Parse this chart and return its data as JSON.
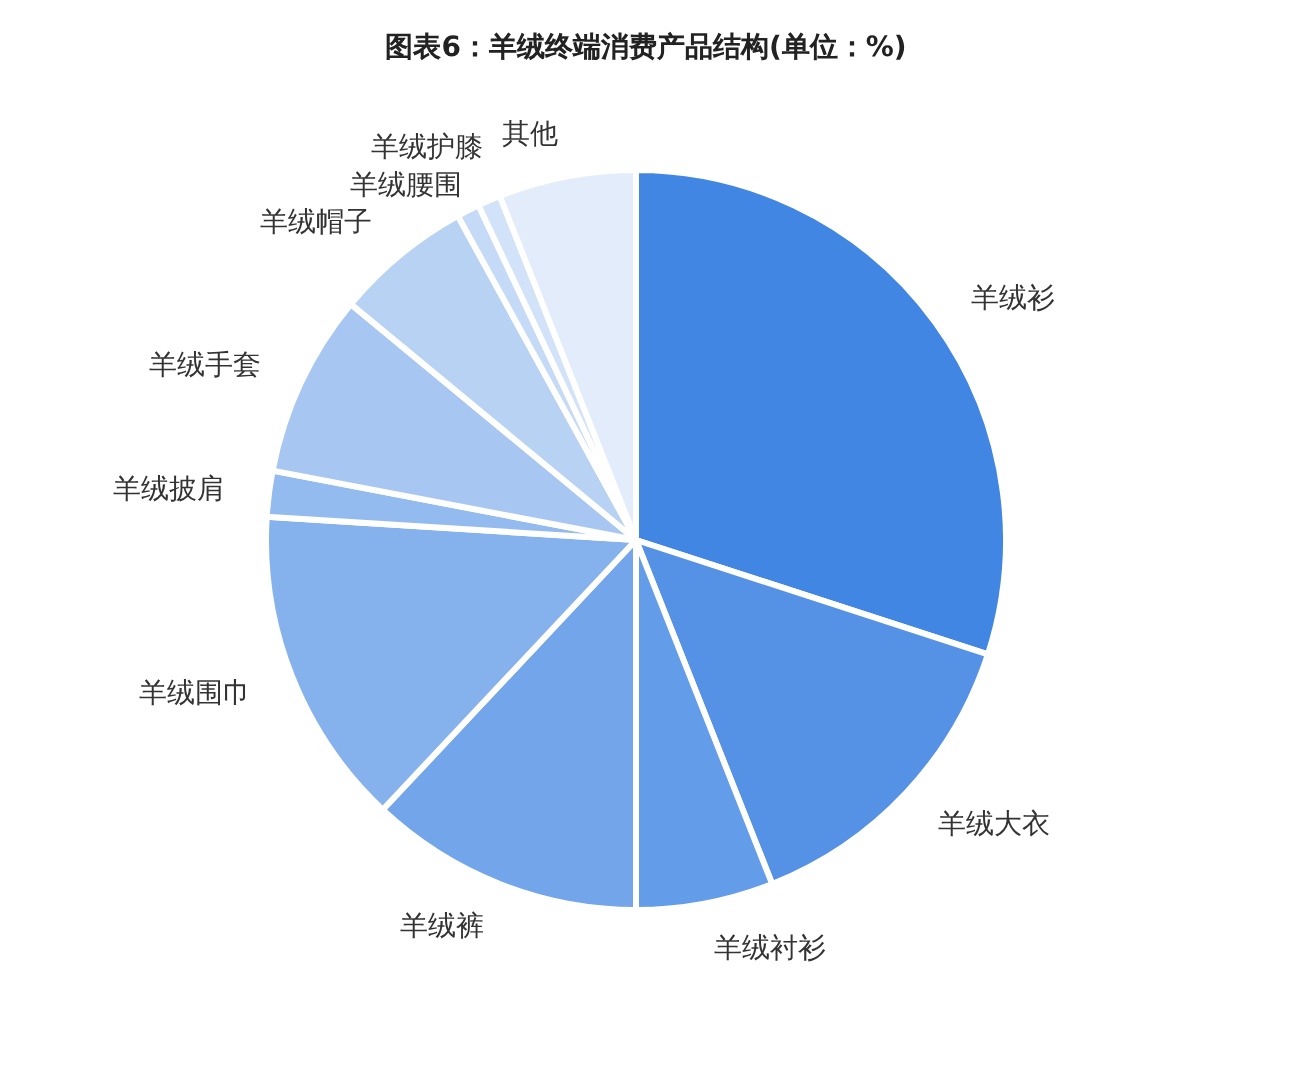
{
  "chart_data": {
    "type": "pie",
    "title": "图表6：羊绒终端消费产品结构(单位：%)",
    "categories": [
      "羊绒衫",
      "羊绒大衣",
      "羊绒衬衫",
      "羊绒裤",
      "羊绒围巾",
      "羊绒披肩",
      "羊绒手套",
      "羊绒帽子",
      "羊绒腰围",
      "羊绒护膝",
      "其他"
    ],
    "values": [
      30,
      14,
      6,
      12,
      14,
      2,
      8,
      6,
      1,
      1,
      6
    ],
    "colors": [
      "#4286e3",
      "#5592e5",
      "#639ce8",
      "#72a5ea",
      "#85b2ed",
      "#94bbef",
      "#a7c7f2",
      "#b8d2f4",
      "#c5daf6",
      "#d2e2f8",
      "#e2ecfa"
    ]
  }
}
